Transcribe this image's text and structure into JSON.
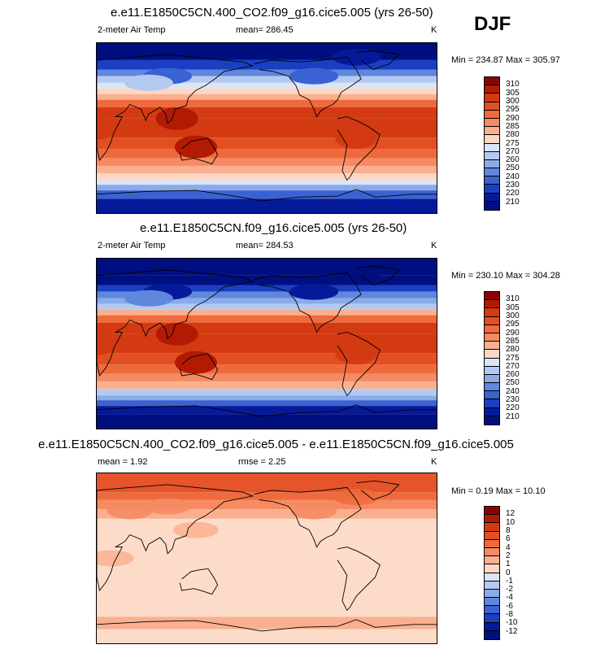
{
  "season": "DJF",
  "units": "K",
  "variable_label": "2-meter Air Temp",
  "chart_data": [
    {
      "type": "heatmap",
      "title": "e.e11.E1850C5CN.400_CO2.f09_g16.cice5.005 (yrs 26-50)",
      "left_label": "2-meter Air Temp",
      "mean_text": "mean= 286.45",
      "units": "K",
      "range_text": "Min = 234.87 Max = 305.97",
      "min": 234.87,
      "max": 305.97,
      "mean": 286.45,
      "colorbar_levels": [
        "310",
        "305",
        "300",
        "295",
        "290",
        "285",
        "280",
        "275",
        "270",
        "260",
        "250",
        "240",
        "230",
        "220",
        "210"
      ],
      "colorbar_colors": [
        "#8c0303",
        "#b31a04",
        "#d43a12",
        "#e24f22",
        "#ee6a3d",
        "#f58a63",
        "#fab08f",
        "#fdd7c3",
        "#dbe5f8",
        "#b4c9f0",
        "#8aaae8",
        "#5f87de",
        "#3a62d2",
        "#1a3fc2",
        "#051a9a",
        "#000f80"
      ]
    },
    {
      "type": "heatmap",
      "title": "e.e11.E1850C5CN.f09_g16.cice5.005 (yrs 26-50)",
      "left_label": "2-meter Air Temp",
      "mean_text": "mean= 284.53",
      "units": "K",
      "range_text": "Min = 230.10 Max = 304.28",
      "min": 230.1,
      "max": 304.28,
      "mean": 284.53,
      "colorbar_levels": [
        "310",
        "305",
        "300",
        "295",
        "290",
        "285",
        "280",
        "275",
        "270",
        "260",
        "250",
        "240",
        "230",
        "220",
        "210"
      ],
      "colorbar_colors": [
        "#8c0303",
        "#b31a04",
        "#d43a12",
        "#e24f22",
        "#ee6a3d",
        "#f58a63",
        "#fab08f",
        "#fdd7c3",
        "#dbe5f8",
        "#b4c9f0",
        "#8aaae8",
        "#5f87de",
        "#3a62d2",
        "#1a3fc2",
        "#051a9a",
        "#000f80"
      ]
    },
    {
      "type": "heatmap",
      "title": "e.e11.E1850C5CN.400_CO2.f09_g16.cice5.005 - e.e11.E1850C5CN.f09_g16.cice5.005",
      "left_label": "mean =    1.92",
      "mean_text": "rmse =    2.25",
      "units": "K",
      "range_text": "Min =   0.19 Max =  10.10",
      "min": 0.19,
      "max": 10.1,
      "mean": 1.92,
      "rmse": 2.25,
      "colorbar_levels": [
        "12",
        "10",
        "8",
        "6",
        "4",
        "2",
        "1",
        "0",
        "-1",
        "-2",
        "-4",
        "-6",
        "-8",
        "-10",
        "-12"
      ],
      "colorbar_colors": [
        "#8c0303",
        "#b31a04",
        "#d43a12",
        "#e24f22",
        "#ee6a3d",
        "#f58a63",
        "#fab08f",
        "#fdd7c3",
        "#dbe5f8",
        "#b4c9f0",
        "#8aaae8",
        "#5f87de",
        "#3a62d2",
        "#1a3fc2",
        "#051a9a",
        "#000f80"
      ]
    }
  ]
}
